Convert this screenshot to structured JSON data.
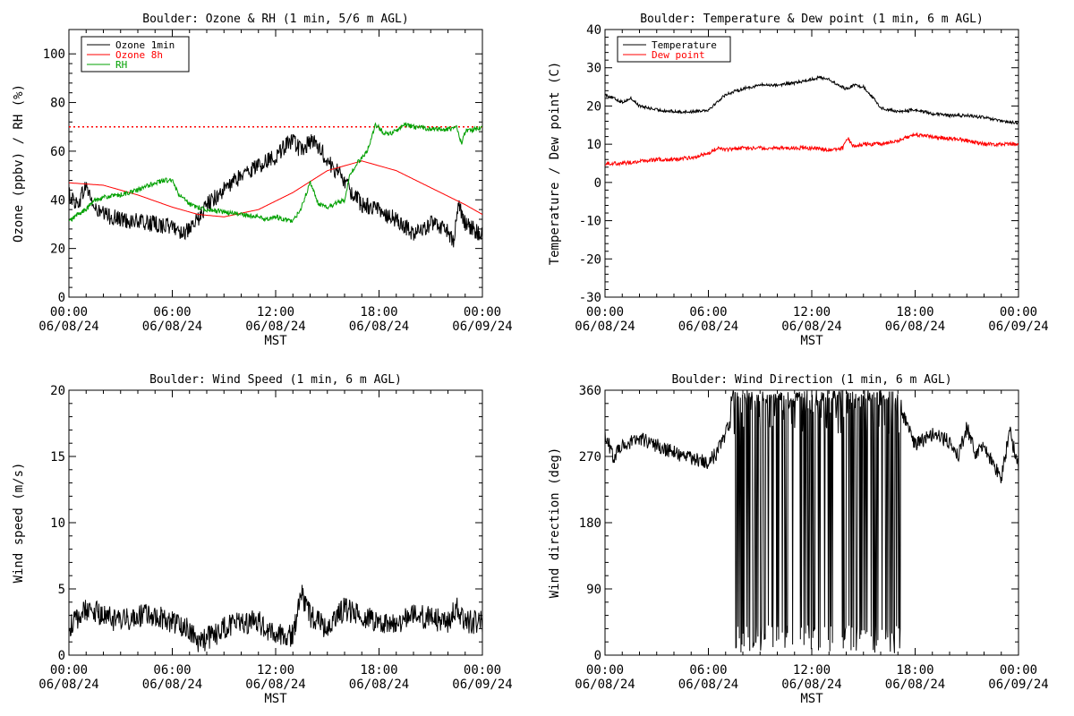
{
  "colors": {
    "ozone_1min": "#000000",
    "ozone_8h": "#ff0000",
    "rh": "#00a000",
    "temperature": "#000000",
    "dew_point": "#ff0000"
  },
  "x_tick_labels": [
    {
      "time": "00:00",
      "date": "06/08/24"
    },
    {
      "time": "06:00",
      "date": "06/08/24"
    },
    {
      "time": "12:00",
      "date": "06/08/24"
    },
    {
      "time": "18:00",
      "date": "06/08/24"
    },
    {
      "time": "00:00",
      "date": "06/09/24"
    }
  ],
  "chart_data": [
    {
      "id": "ozone_rh",
      "type": "line",
      "title": "Boulder: Ozone & RH (1 min, 5/6 m AGL)",
      "xlabel": "MST",
      "ylabel": "Ozone (ppbv) / RH (%)",
      "xlim": [
        0,
        24
      ],
      "ylim": [
        0,
        110
      ],
      "yticks": [
        0,
        20,
        40,
        60,
        80,
        100
      ],
      "legend": "top-left",
      "reference_line": {
        "y": 70,
        "style": "dotted",
        "color": "#ff0000"
      },
      "series": [
        {
          "name": "Ozone 1min",
          "color": "#000000",
          "noise": 3.5,
          "x": [
            0,
            0.5,
            1,
            1.5,
            2,
            3,
            4,
            5,
            6,
            6.5,
            7,
            7.5,
            8,
            9,
            10,
            11,
            12,
            12.5,
            13,
            13.5,
            14,
            14.5,
            15,
            15.5,
            16,
            16.5,
            17,
            18,
            19,
            20,
            21,
            22,
            22.3,
            22.6,
            23,
            23.5,
            24
          ],
          "y": [
            42,
            38,
            46,
            36,
            34,
            32,
            31,
            30,
            29,
            27,
            27,
            32,
            38,
            44,
            50,
            54,
            58,
            62,
            64,
            60,
            64,
            62,
            56,
            52,
            48,
            42,
            38,
            36,
            32,
            26,
            30,
            28,
            22,
            40,
            30,
            28,
            25
          ]
        },
        {
          "name": "Ozone 8h",
          "color": "#ff0000",
          "noise": 0,
          "x": [
            0,
            2,
            4,
            6,
            7.5,
            9,
            11,
            13,
            15,
            17,
            19,
            21,
            23,
            24
          ],
          "y": [
            47,
            46,
            42,
            37,
            34,
            33,
            36,
            43,
            52,
            56,
            52,
            45,
            38,
            34
          ]
        },
        {
          "name": "RH",
          "color": "#00a000",
          "noise": 1.0,
          "x": [
            0,
            0.5,
            1,
            1.5,
            2,
            3,
            4,
            5,
            5.5,
            6,
            6.3,
            7,
            8,
            9,
            10,
            11,
            11.5,
            12,
            13,
            13.5,
            14,
            14.5,
            15,
            16,
            16.3,
            16.7,
            17,
            17.3,
            17.8,
            18.2,
            18.7,
            19.5,
            20,
            21,
            22,
            22.5,
            22.8,
            23,
            23.5,
            24
          ],
          "y": [
            31,
            34,
            36,
            40,
            41,
            42,
            44,
            47,
            48,
            48,
            43,
            38,
            36,
            35,
            34,
            33,
            32,
            33,
            31,
            37,
            47,
            38,
            37,
            40,
            50,
            55,
            57,
            60,
            71,
            68,
            67,
            71,
            70,
            69,
            69,
            70,
            63,
            68,
            69,
            70
          ]
        }
      ]
    },
    {
      "id": "temp_dew",
      "type": "line",
      "title": "Boulder: Temperature & Dew point (1 min, 6 m AGL)",
      "xlabel": "MST",
      "ylabel": "Temperature / Dew point (C)",
      "xlim": [
        0,
        24
      ],
      "ylim": [
        -30,
        40
      ],
      "yticks": [
        -30,
        -20,
        -10,
        0,
        10,
        20,
        30,
        40
      ],
      "legend": "top-left",
      "series": [
        {
          "name": "Temperature",
          "color": "#000000",
          "noise": 0.4,
          "x": [
            0,
            1,
            1.5,
            2,
            3,
            4,
            5,
            6,
            6.5,
            7,
            8,
            9,
            10,
            11,
            12,
            12.5,
            13,
            13.5,
            14,
            14.5,
            15,
            15.5,
            16,
            17,
            18,
            19,
            20,
            21,
            22,
            23,
            24
          ],
          "y": [
            23,
            21,
            22,
            20,
            19,
            18.5,
            18.5,
            19,
            21,
            23,
            24.5,
            25.5,
            25.5,
            26,
            27,
            27.5,
            27,
            25.5,
            24.5,
            25.5,
            25,
            22.5,
            19.5,
            18.5,
            19,
            18,
            17.5,
            17.5,
            17,
            16,
            15.5
          ]
        },
        {
          "name": "Dew point",
          "color": "#ff0000",
          "noise": 0.5,
          "x": [
            0,
            1,
            2,
            3,
            4,
            5,
            6,
            6.5,
            7,
            8,
            9,
            10,
            11,
            12,
            13,
            13.8,
            14.1,
            14.4,
            15,
            16,
            17,
            18,
            19,
            20,
            21,
            22,
            23,
            24
          ],
          "y": [
            5,
            5,
            5.5,
            6,
            6,
            6.5,
            7.5,
            9,
            8.5,
            9,
            9,
            9,
            9,
            9,
            8.5,
            9,
            11.5,
            9.5,
            10,
            10,
            11,
            12.5,
            12,
            11.5,
            11,
            10,
            10,
            10
          ]
        }
      ]
    },
    {
      "id": "wind_speed",
      "type": "line",
      "title": "Boulder: Wind Speed (1 min, 6 m AGL)",
      "xlabel": "MST",
      "ylabel": "Wind speed (m/s)",
      "xlim": [
        0,
        24
      ],
      "ylim": [
        0,
        20
      ],
      "yticks": [
        0,
        5,
        10,
        15,
        20
      ],
      "series": [
        {
          "name": "",
          "color": "#000000",
          "noise": 0.9,
          "x": [
            0,
            1,
            2,
            3,
            4,
            5,
            6,
            7,
            7.5,
            8,
            9,
            10,
            11,
            12,
            13,
            13.5,
            14,
            15,
            16,
            17,
            18,
            19,
            20,
            21,
            22,
            22.5,
            23,
            24
          ],
          "y": [
            2,
            3.5,
            3,
            2.5,
            3,
            3,
            2.5,
            2,
            1,
            1.2,
            2,
            2.5,
            2.5,
            1.5,
            1.5,
            4.5,
            3,
            2,
            3.5,
            3,
            2.5,
            2.5,
            3,
            2.8,
            2.5,
            3.5,
            2.5,
            2.5
          ]
        }
      ]
    },
    {
      "id": "wind_direction",
      "type": "line",
      "title": "Boulder: Wind Direction (1 min, 6 m AGL)",
      "xlabel": "MST",
      "ylabel": "Wind direction (deg)",
      "xlim": [
        0,
        24
      ],
      "ylim": [
        0,
        360
      ],
      "yticks": [
        0,
        90,
        180,
        270,
        360
      ],
      "series": [
        {
          "name": "",
          "color": "#000000",
          "noise": 10,
          "x": [
            0,
            0.5,
            1,
            2,
            3,
            4,
            5,
            6,
            6.5,
            7,
            7.3,
            17.2,
            18,
            19,
            20,
            20.5,
            21,
            21.5,
            22,
            22.5,
            23,
            23.5,
            24
          ],
          "y": [
            300,
            270,
            285,
            295,
            285,
            275,
            268,
            262,
            275,
            300,
            320,
            330,
            285,
            300,
            290,
            270,
            310,
            275,
            285,
            260,
            240,
            305,
            255
          ],
          "oscillating_ranges": [
            [
              7.3,
              12.2
            ],
            [
              12.2,
              17.2
            ]
          ]
        }
      ]
    }
  ]
}
